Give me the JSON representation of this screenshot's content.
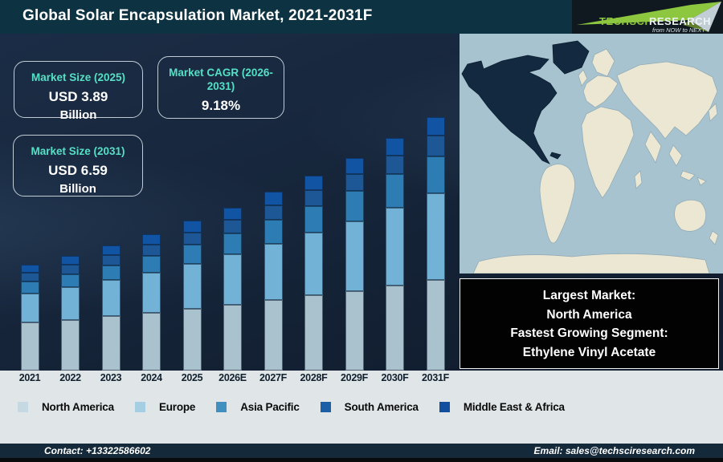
{
  "header": {
    "title": "Global Solar Encapsulation Market, 2021-2031F"
  },
  "logo": {
    "brand_primary": "TECHSCI",
    "brand_secondary": "RESEARCH",
    "tagline": "from NOW to NEXT",
    "green": "#8dc63f"
  },
  "info_boxes": [
    {
      "label": "Market Size (2025)",
      "value": "USD 3.89",
      "unit": "Billion"
    },
    {
      "label": "Market CAGR (2026-2031)",
      "value": "9.18%",
      "unit": ""
    },
    {
      "label": "Market Size (2031)",
      "value": "USD 6.59",
      "unit": "Billion"
    }
  ],
  "highlight_box": {
    "lines": [
      "Largest Market:",
      "North America",
      "Fastest Growing Segment:",
      "Ethylene Vinyl Acetate"
    ]
  },
  "footer": {
    "contact": "Contact: +13322586602",
    "email": "Email: sales@techsciresearch.com"
  },
  "colors": {
    "titlebar": "#0d3242",
    "panel_navy": "#16253a",
    "accent_teal": "#55e0c6",
    "strip_gray": "#e0e6e8",
    "footer_navy": "#14293a",
    "map_ocean": "#a7c3cf",
    "map_land": "#ece7d2",
    "map_north_america": "#13293f"
  },
  "chart_data": {
    "type": "bar",
    "stacked": true,
    "title": "Global Solar Encapsulation Market, 2021-2031F",
    "unit": "USD Billion",
    "xlabel": "",
    "ylabel": "",
    "ylim": [
      0,
      7
    ],
    "grid": false,
    "legend_position": "bottom",
    "categories": [
      "2021",
      "2022",
      "2023",
      "2024",
      "2025",
      "2026E",
      "2027F",
      "2028F",
      "2029F",
      "2030F",
      "2031F"
    ],
    "totals": [
      2.75,
      2.99,
      3.26,
      3.55,
      3.89,
      4.24,
      4.64,
      5.06,
      5.53,
      6.04,
      6.59
    ],
    "series": [
      {
        "name": "North America",
        "color": "#aac2ce",
        "swatch": "#c6d9e3",
        "values": [
          1.24,
          1.32,
          1.41,
          1.5,
          1.61,
          1.71,
          1.83,
          1.95,
          2.07,
          2.21,
          2.35
        ]
      },
      {
        "name": "Europe",
        "color": "#72b2d7",
        "swatch": "#a6cee3",
        "values": [
          0.76,
          0.84,
          0.94,
          1.05,
          1.17,
          1.31,
          1.46,
          1.63,
          1.81,
          2.02,
          2.25
        ]
      },
      {
        "name": "Asia Pacific",
        "color": "#2e7cb4",
        "swatch": "#3f8fc0",
        "values": [
          0.31,
          0.35,
          0.39,
          0.44,
          0.49,
          0.55,
          0.62,
          0.69,
          0.78,
          0.87,
          0.97
        ]
      },
      {
        "name": "South America",
        "color": "#1e5795",
        "swatch": "#1b5fa6",
        "values": [
          0.23,
          0.25,
          0.27,
          0.29,
          0.32,
          0.35,
          0.38,
          0.41,
          0.45,
          0.49,
          0.53
        ]
      },
      {
        "name": "Middle East & Africa",
        "color": "#1254a4",
        "swatch": "#114f9e",
        "values": [
          0.21,
          0.23,
          0.25,
          0.27,
          0.3,
          0.32,
          0.35,
          0.38,
          0.42,
          0.45,
          0.49
        ]
      }
    ],
    "annotations": {
      "market_size_2025_usd_billion": 3.89,
      "market_size_2031_usd_billion": 6.59,
      "cagr_2026_2031_percent": 9.18,
      "largest_market": "North America",
      "fastest_growing_segment": "Ethylene Vinyl Acetate"
    }
  }
}
